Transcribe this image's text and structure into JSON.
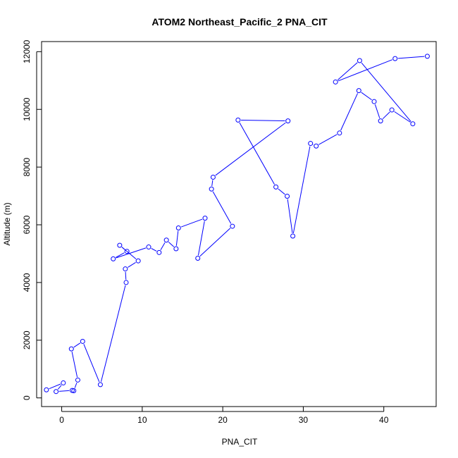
{
  "chart_data": {
    "type": "line",
    "title": "ATOM2 Northeast_Pacific_2 PNA_CIT",
    "xlabel": "PNA_CIT",
    "ylabel": "Altitude (m)",
    "xlim": [
      -2.5,
      46.5
    ],
    "ylim": [
      -300,
      12350
    ],
    "xticks": [
      0,
      10,
      20,
      30,
      40
    ],
    "yticks": [
      0,
      2000,
      4000,
      6000,
      8000,
      10000,
      12000
    ],
    "grid": false,
    "legend": "none",
    "series_color": "#0000ff",
    "markers": "open-circle",
    "series": [
      {
        "x": [
          -1.9,
          0.2,
          -0.7,
          1.3,
          1.5,
          2.0,
          1.2,
          2.6,
          4.8,
          8.0,
          7.9,
          9.5,
          7.2,
          8.1,
          6.4,
          10.8,
          12.1,
          13.0,
          14.2,
          14.5,
          17.8,
          16.9,
          21.2,
          18.6,
          18.8,
          28.1,
          21.9,
          26.6,
          28.0,
          28.7,
          30.9,
          31.6,
          34.5,
          36.9,
          38.8,
          39.6,
          41.0,
          43.6,
          37.0,
          34.0,
          41.4,
          45.4
        ],
        "y": [
          280,
          520,
          220,
          260,
          250,
          620,
          1700,
          1960,
          460,
          4000,
          4470,
          4750,
          5290,
          5080,
          4820,
          5230,
          5040,
          5470,
          5170,
          5890,
          6230,
          4840,
          5950,
          7240,
          7650,
          9600,
          9630,
          7310,
          6990,
          5610,
          8820,
          8730,
          9180,
          10650,
          10270,
          9600,
          9980,
          9500,
          11690,
          10950,
          11760,
          11840
        ]
      }
    ]
  }
}
